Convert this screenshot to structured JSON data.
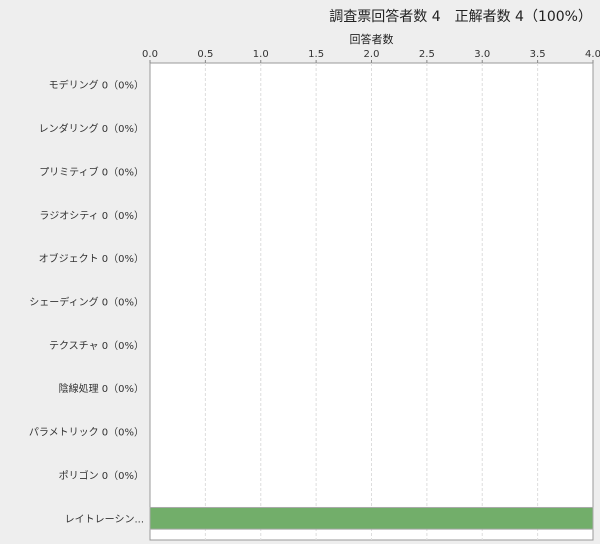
{
  "chart_data": {
    "type": "bar",
    "orientation": "horizontal",
    "title": "調査票回答者数 4　正解者数 4（100%）",
    "xlabel": "回答者数",
    "xlim": [
      0,
      4
    ],
    "xticks": [
      "0.0",
      "0.5",
      "1.0",
      "1.5",
      "2.0",
      "2.5",
      "3.0",
      "3.5",
      "4.0"
    ],
    "categories": [
      "モデリング 0（0%）",
      "レンダリング 0（0%）",
      "プリミティブ 0（0%）",
      "ラジオシティ 0（0%）",
      "オブジェクト 0（0%）",
      "シェーディング 0（0%）",
      "テクスチャ 0（0%）",
      "陰線処理 0（0%）",
      "パラメトリック 0（0%）",
      "ポリゴン 0（0%）",
      "レイトレーシン..."
    ],
    "values": [
      0,
      0,
      0,
      0,
      0,
      0,
      0,
      0,
      0,
      0,
      4
    ],
    "grid": true,
    "axis_position": "top",
    "bar_color": "#72ae6a"
  }
}
